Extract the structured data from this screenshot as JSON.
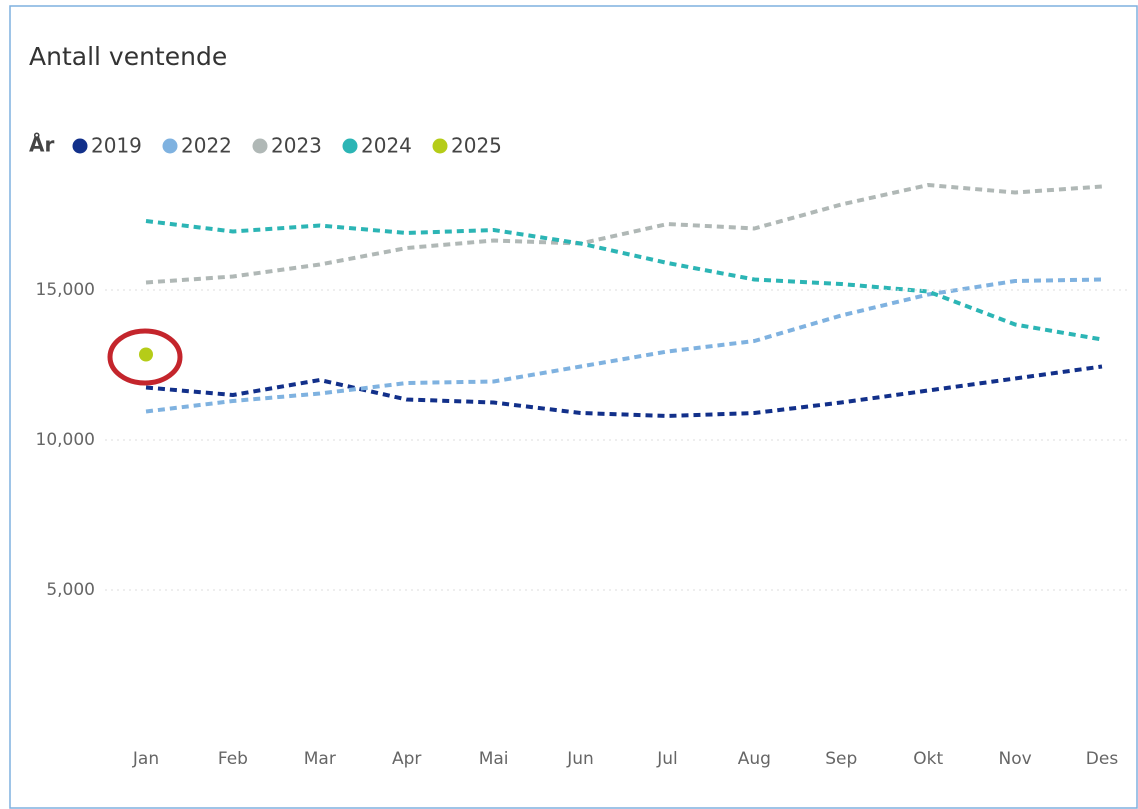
{
  "chart_data": {
    "type": "line",
    "title": "Antall ventende",
    "legend_title": "År",
    "categories": [
      "Jan",
      "Feb",
      "Mar",
      "Apr",
      "Mai",
      "Jun",
      "Jul",
      "Aug",
      "Sep",
      "Okt",
      "Nov",
      "Des"
    ],
    "series": [
      {
        "name": "2019",
        "color": "#12308a",
        "values": [
          11750,
          11500,
          12000,
          11350,
          11250,
          10900,
          10800,
          10900,
          11250,
          11650,
          12050,
          12450
        ]
      },
      {
        "name": "2022",
        "color": "#7fb2e0",
        "values": [
          10950,
          11300,
          11550,
          11900,
          11950,
          12450,
          12950,
          13300,
          14150,
          14850,
          15300,
          15350
        ]
      },
      {
        "name": "2023",
        "color": "#b0b8b6",
        "values": [
          15250,
          15450,
          15850,
          16400,
          16650,
          16550,
          17200,
          17050,
          17850,
          18500,
          18250,
          18450
        ]
      },
      {
        "name": "2024",
        "color": "#2cb5b5",
        "values": [
          17300,
          16950,
          17150,
          16900,
          17000,
          16550,
          15900,
          15350,
          15200,
          14950,
          13850,
          13350
        ]
      },
      {
        "name": "2025",
        "color": "#b5cc18",
        "values": [
          12850,
          null,
          null,
          null,
          null,
          null,
          null,
          null,
          null,
          null,
          null,
          null
        ]
      }
    ],
    "ylim": [
      0,
      19000
    ],
    "yticks": [
      {
        "value": 5000,
        "label": "5,000"
      },
      {
        "value": 10000,
        "label": "10,000"
      },
      {
        "value": 15000,
        "label": "15,000"
      }
    ],
    "grid": true
  }
}
